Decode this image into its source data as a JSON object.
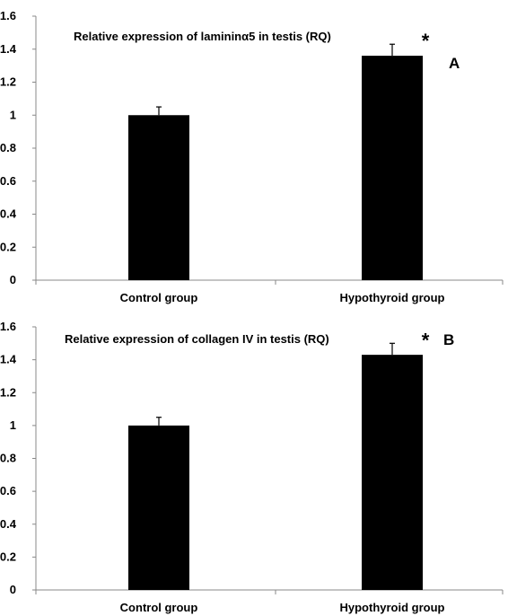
{
  "chart_data": [
    {
      "type": "bar",
      "panel_label": "A",
      "title": "Relative expression of lamininα5 in testis (RQ)",
      "categories": [
        "Control group",
        "Hypothyroid group"
      ],
      "values": [
        1.0,
        1.36
      ],
      "error": [
        0.05,
        0.07
      ],
      "significance": [
        "",
        "*"
      ],
      "ylim": [
        0,
        1.6
      ],
      "yticks": [
        "0",
        "0.2",
        "0.4",
        "0.6",
        "0.8",
        "1",
        "1.2",
        "1.4",
        "1.6"
      ],
      "bar_color": "#000000",
      "grid": false,
      "legend": "none"
    },
    {
      "type": "bar",
      "panel_label": "B",
      "title": "Relative expression of collagen IV in testis (RQ)",
      "categories": [
        "Control group",
        "Hypothyroid group"
      ],
      "values": [
        1.0,
        1.43
      ],
      "error": [
        0.05,
        0.07
      ],
      "significance": [
        "",
        "*"
      ],
      "ylim": [
        0,
        1.6
      ],
      "yticks": [
        "0",
        "0.2",
        "0.4",
        "0.6",
        "0.8",
        "1",
        "1.2",
        "1.4",
        "1.6"
      ],
      "bar_color": "#000000",
      "grid": false,
      "legend": "none"
    }
  ]
}
